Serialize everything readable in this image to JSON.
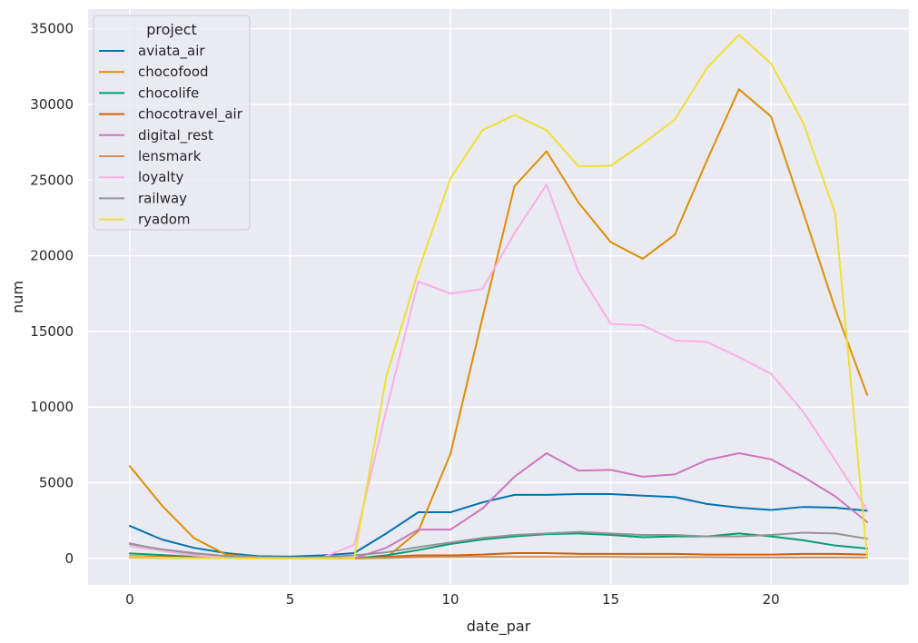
{
  "chart_data": {
    "type": "line",
    "xlabel": "date_par",
    "ylabel": "num",
    "xlim": [
      -1.3,
      24.3
    ],
    "ylim": [
      -1750,
      36300
    ],
    "xticks": [
      0,
      5,
      10,
      15,
      20
    ],
    "yticks": [
      0,
      5000,
      10000,
      15000,
      20000,
      25000,
      30000,
      35000
    ],
    "grid": true,
    "legend": {
      "title": "project",
      "placement": "top-left"
    },
    "x": [
      0,
      1,
      2,
      3,
      4,
      5,
      6,
      7,
      8,
      9,
      10,
      11,
      12,
      13,
      14,
      15,
      16,
      17,
      18,
      19,
      20,
      21,
      22,
      23
    ],
    "series": [
      {
        "name": "aviata_air",
        "color": "#0173b2",
        "values": [
          2150,
          1250,
          700,
          350,
          150,
          120,
          200,
          350,
          1650,
          3050,
          3050,
          3700,
          4200,
          4200,
          4250,
          4250,
          4150,
          4050,
          3600,
          3350,
          3200,
          3400,
          3350,
          3150
        ]
      },
      {
        "name": "chocofood",
        "color": "#de8f05",
        "values": [
          6100,
          3500,
          1350,
          250,
          80,
          50,
          30,
          0,
          50,
          1800,
          6900,
          15900,
          24600,
          26900,
          23500,
          20900,
          19800,
          21400,
          26300,
          31000,
          29200,
          22900,
          16500,
          10800
        ]
      },
      {
        "name": "chocolife",
        "color": "#029e73",
        "values": [
          330,
          220,
          100,
          50,
          30,
          20,
          30,
          0,
          200,
          550,
          950,
          1250,
          1450,
          1600,
          1650,
          1550,
          1400,
          1450,
          1450,
          1650,
          1450,
          1200,
          850,
          650
        ]
      },
      {
        "name": "chocotravel_air",
        "color": "#d55e00",
        "values": [
          150,
          100,
          60,
          30,
          20,
          10,
          10,
          0,
          100,
          200,
          200,
          250,
          350,
          350,
          300,
          300,
          300,
          300,
          250,
          250,
          250,
          300,
          300,
          250
        ]
      },
      {
        "name": "digital_rest",
        "color": "#cc78bc",
        "values": [
          1000,
          550,
          250,
          80,
          30,
          20,
          30,
          0,
          700,
          1900,
          1900,
          3300,
          5400,
          6950,
          5800,
          5850,
          5400,
          5550,
          6500,
          6950,
          6550,
          5400,
          4100,
          2400
        ]
      },
      {
        "name": "lensmark",
        "color": "#ca9161",
        "values": [
          50,
          30,
          20,
          10,
          10,
          10,
          10,
          0,
          30,
          80,
          100,
          100,
          100,
          100,
          100,
          100,
          80,
          80,
          80,
          60,
          60,
          60,
          60,
          60
        ]
      },
      {
        "name": "loyalty",
        "color": "#fbafe4",
        "values": [
          800,
          500,
          200,
          80,
          40,
          20,
          50,
          900,
          9800,
          18300,
          17500,
          17800,
          21500,
          24700,
          18900,
          15500,
          15400,
          14400,
          14300,
          13300,
          12200,
          9700,
          6500,
          3200
        ]
      },
      {
        "name": "railway",
        "color": "#949494",
        "values": [
          950,
          600,
          350,
          150,
          80,
          50,
          80,
          200,
          400,
          750,
          1050,
          1350,
          1550,
          1650,
          1750,
          1650,
          1550,
          1550,
          1450,
          1450,
          1550,
          1700,
          1650,
          1300
        ]
      },
      {
        "name": "ryadom",
        "color": "#ece133",
        "values": [
          100,
          50,
          30,
          20,
          10,
          10,
          10,
          0,
          12000,
          19000,
          25100,
          28300,
          29300,
          28300,
          25900,
          25950,
          27400,
          29000,
          32400,
          34600,
          32700,
          28800,
          22800,
          0
        ]
      }
    ]
  }
}
